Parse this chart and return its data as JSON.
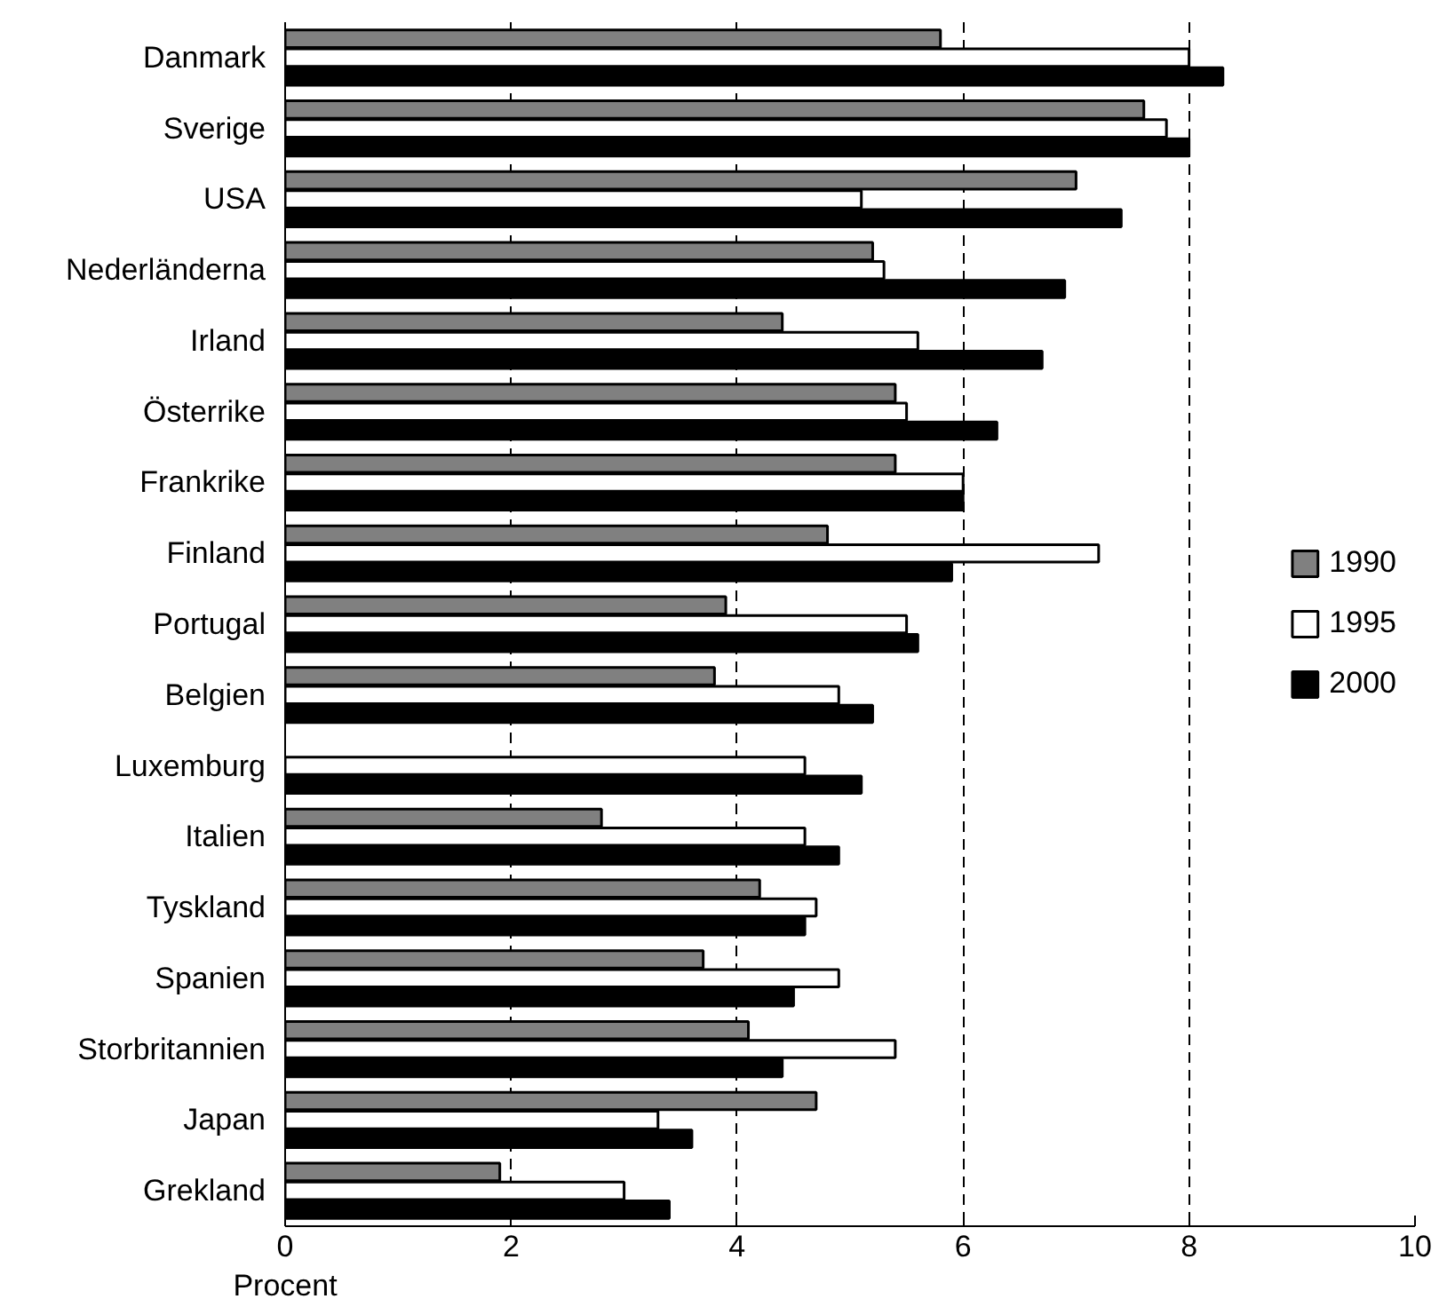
{
  "chart_data": {
    "type": "bar",
    "orientation": "horizontal",
    "xlabel": "Procent",
    "categories": [
      "Danmark",
      "Sverige",
      "USA",
      "Nederländerna",
      "Irland",
      "Österrike",
      "Frankrike",
      "Finland",
      "Portugal",
      "Belgien",
      "Luxemburg",
      "Italien",
      "Tyskland",
      "Spanien",
      "Storbritannien",
      "Japan",
      "Grekland"
    ],
    "series": [
      {
        "name": "1990",
        "color": "#808080",
        "values": [
          5.8,
          7.6,
          7.0,
          5.2,
          4.4,
          5.4,
          5.4,
          4.8,
          3.9,
          3.8,
          null,
          2.8,
          4.2,
          3.7,
          4.1,
          4.7,
          1.9
        ]
      },
      {
        "name": "1995",
        "color": "#ffffff",
        "values": [
          8.0,
          7.8,
          5.1,
          5.3,
          5.6,
          5.5,
          6.0,
          7.2,
          5.5,
          4.9,
          4.6,
          4.6,
          4.7,
          4.9,
          5.4,
          3.3,
          3.0
        ]
      },
      {
        "name": "2000",
        "color": "#000000",
        "values": [
          8.3,
          8.0,
          7.4,
          6.9,
          6.7,
          6.3,
          6.0,
          5.9,
          5.6,
          5.2,
          5.1,
          4.9,
          4.6,
          4.5,
          4.4,
          3.6,
          3.4
        ]
      }
    ],
    "xlim": [
      0,
      10
    ],
    "xticks": [
      0,
      2,
      4,
      6,
      8,
      10
    ],
    "grid": "x",
    "legend": "right"
  }
}
